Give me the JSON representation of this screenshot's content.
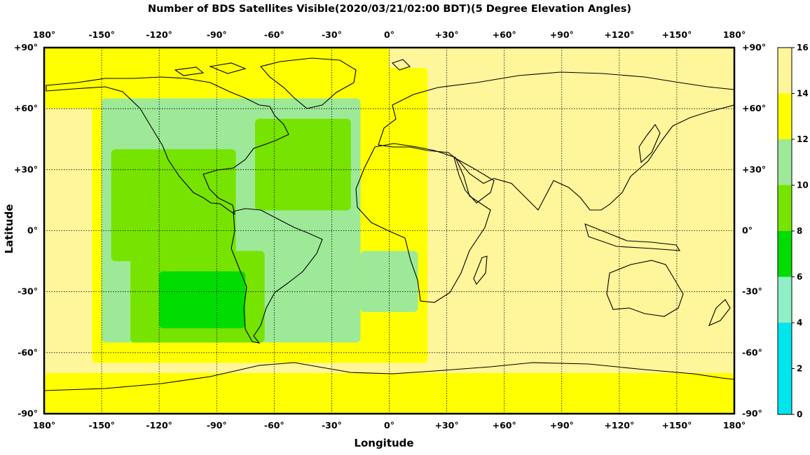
{
  "chart_data": {
    "type": "heatmap",
    "title": "Number of BDS Satellites Visible(2020/03/21/02:00 BDT)(5 Degree Elevation Angles)",
    "xlabel": "Longitude",
    "ylabel": "Latitude",
    "xlim": [
      -180,
      180
    ],
    "ylim": [
      -90,
      90
    ],
    "x_ticks": [
      "180°",
      "-150°",
      "-120°",
      "-90°",
      "-60°",
      "-30°",
      "0°",
      "+30°",
      "+60°",
      "+90°",
      "+120°",
      "+150°",
      "180°"
    ],
    "y_ticks": [
      "+90°",
      "+60°",
      "+30°",
      "0°",
      "-30°",
      "-60°",
      "-90°"
    ],
    "grid": true,
    "colorbar": {
      "ticks": [
        "0",
        "2",
        "4",
        "6",
        "8",
        "10",
        "12",
        "14",
        "16"
      ],
      "bands": [
        {
          "min": 0,
          "max": 4,
          "color": "#00e5ee"
        },
        {
          "min": 4,
          "max": 6,
          "color": "#8ff0c8"
        },
        {
          "min": 6,
          "max": 8,
          "color": "#00dd00"
        },
        {
          "min": 8,
          "max": 10,
          "color": "#77e300"
        },
        {
          "min": 10,
          "max": 12,
          "color": "#9de998"
        },
        {
          "min": 12,
          "max": 14,
          "color": "#ffff00"
        },
        {
          "min": 14,
          "max": 16,
          "color": "#fff59a"
        }
      ]
    },
    "regions": [
      {
        "value": 15,
        "lon": [
          -180,
          180
        ],
        "lat": [
          -90,
          90
        ]
      },
      {
        "value": 13,
        "lon": [
          -180,
          180
        ],
        "lat": [
          -90,
          -70
        ]
      },
      {
        "value": 13,
        "lon": [
          -155,
          20
        ],
        "lat": [
          -65,
          80
        ]
      },
      {
        "value": 13,
        "lon": [
          -180,
          0
        ],
        "lat": [
          60,
          90
        ]
      },
      {
        "value": 11,
        "lon": [
          -150,
          -15
        ],
        "lat": [
          -55,
          65
        ]
      },
      {
        "value": 11,
        "lon": [
          -15,
          15
        ],
        "lat": [
          -40,
          -10
        ]
      },
      {
        "value": 9,
        "lon": [
          -145,
          -80
        ],
        "lat": [
          -15,
          40
        ]
      },
      {
        "value": 9,
        "lon": [
          -70,
          -20
        ],
        "lat": [
          10,
          55
        ]
      },
      {
        "value": 9,
        "lon": [
          -135,
          -65
        ],
        "lat": [
          -55,
          -10
        ]
      },
      {
        "value": 7,
        "lon": [
          -120,
          -75
        ],
        "lat": [
          -48,
          -20
        ]
      }
    ]
  }
}
